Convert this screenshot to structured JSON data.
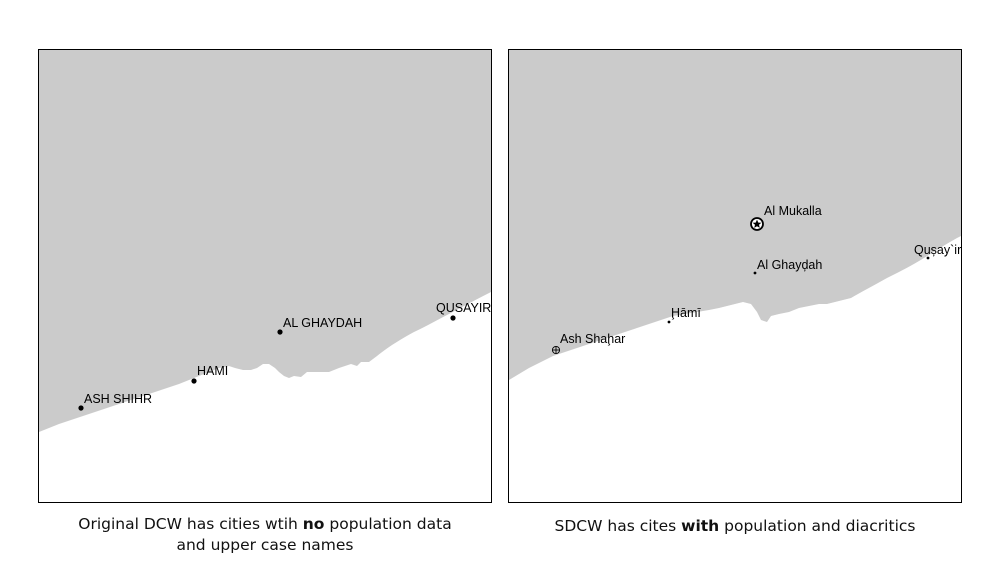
{
  "colors": {
    "land": "#cbcbcb",
    "sea": "#ffffff",
    "frame": "#000000",
    "point": "#000000"
  },
  "left_map": {
    "cities": [
      {
        "name": "ASH SHIHR",
        "symbol": "dot"
      },
      {
        "name": "HAMI",
        "symbol": "dot"
      },
      {
        "name": "AL GHAYDAH",
        "symbol": "dot"
      },
      {
        "name": "QUSAYIR",
        "symbol": "dot"
      }
    ],
    "caption": {
      "line1_before": "Original DCW has cities wtih ",
      "line1_bold": "no",
      "line1_after": " population data",
      "line2": "and upper case names"
    }
  },
  "right_map": {
    "cities": [
      {
        "name": "Al Mukalla",
        "symbol": "star-in-circle"
      },
      {
        "name": "Al Ghayḑah",
        "symbol": "small-dot"
      },
      {
        "name": "Qușay`ir",
        "symbol": "small-dot"
      },
      {
        "name": "Ḩāmī",
        "symbol": "small-dot"
      },
      {
        "name": "Ash Shaḩar",
        "symbol": "crosshair-circle"
      }
    ],
    "caption": {
      "before": "SDCW has cites ",
      "bold": "with",
      "after": " population and diacritics"
    }
  }
}
